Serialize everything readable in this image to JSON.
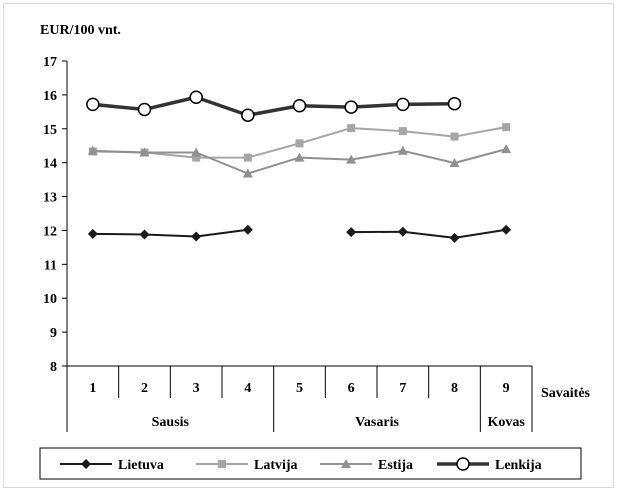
{
  "chart_data": {
    "type": "line",
    "ylabel": "EUR/100 vnt.",
    "xlabel": "Savaitės",
    "ylim": [
      8,
      17
    ],
    "yticks": [
      8,
      9,
      10,
      11,
      12,
      13,
      14,
      15,
      16,
      17
    ],
    "categories": [
      "1",
      "2",
      "3",
      "4",
      "5",
      "6",
      "7",
      "8",
      "9"
    ],
    "month_groups": [
      {
        "label": "Sausis",
        "weeks": [
          "1",
          "2",
          "3",
          "4"
        ]
      },
      {
        "label": "Vasaris",
        "weeks": [
          "5",
          "6",
          "7",
          "8"
        ]
      },
      {
        "label": "Kovas",
        "weeks": [
          "9"
        ]
      }
    ],
    "grid": false,
    "legend_position": "bottom",
    "series": [
      {
        "name": "Lietuva",
        "color": "#1a1a1a",
        "marker": "diamond",
        "values": [
          11.9,
          11.88,
          11.82,
          12.02,
          null,
          11.95,
          11.96,
          11.78,
          12.02
        ]
      },
      {
        "name": "Latvija",
        "color": "#a6a6a6",
        "marker": "square",
        "values": [
          14.33,
          14.3,
          14.15,
          14.15,
          14.57,
          15.02,
          14.93,
          14.77,
          15.05
        ]
      },
      {
        "name": "Estija",
        "color": "#909090",
        "marker": "triangle",
        "values": [
          14.35,
          14.3,
          14.3,
          13.68,
          14.15,
          14.09,
          14.35,
          13.99,
          14.4
        ]
      },
      {
        "name": "Lenkija",
        "color": "#333333",
        "marker": "circle",
        "values": [
          15.72,
          15.57,
          15.93,
          15.4,
          15.68,
          15.64,
          15.72,
          15.74,
          null
        ]
      }
    ]
  }
}
